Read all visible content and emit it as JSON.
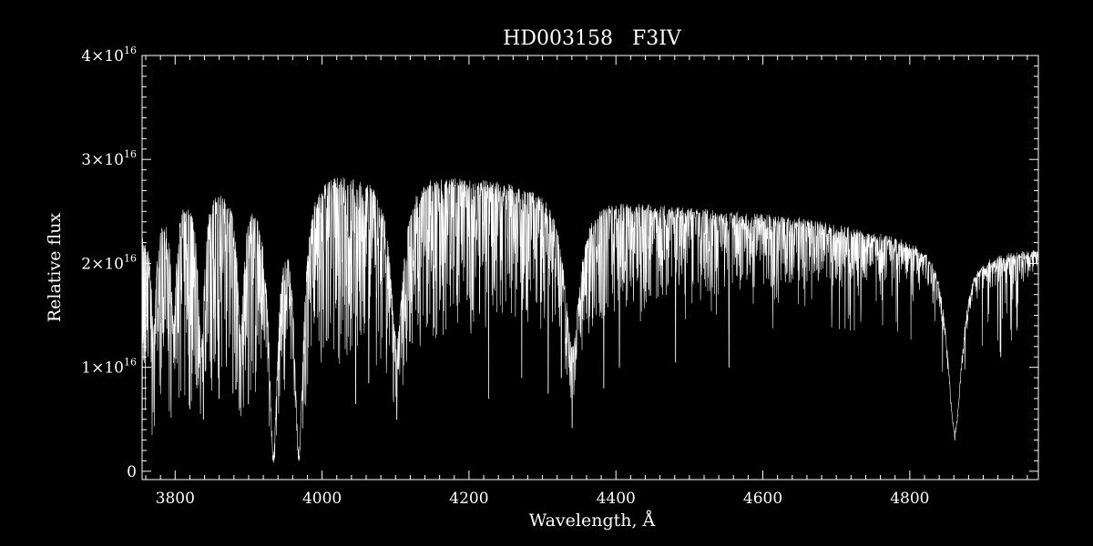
{
  "chart_data": {
    "type": "line",
    "title": "HD003158   F3IV",
    "xlabel": "Wavelength, Å",
    "ylabel": "Relative flux",
    "xlim": [
      3755,
      4975
    ],
    "ylim": [
      -0.08,
      4.0
    ],
    "y_scale_factor_exponent": "16",
    "x_ticks": [
      {
        "value": 3800,
        "label": "3800"
      },
      {
        "value": 4000,
        "label": "4000"
      },
      {
        "value": 4200,
        "label": "4200"
      },
      {
        "value": 4400,
        "label": "4400"
      },
      {
        "value": 4600,
        "label": "4600"
      },
      {
        "value": 4800,
        "label": "4800"
      }
    ],
    "y_ticks": [
      {
        "value": 0,
        "mantissa": "0",
        "exponent": ""
      },
      {
        "value": 1,
        "mantissa": "1×10",
        "exponent": "16"
      },
      {
        "value": 2,
        "mantissa": "2×10",
        "exponent": "16"
      },
      {
        "value": 3,
        "mantissa": "3×10",
        "exponent": "16"
      },
      {
        "value": 4,
        "mantissa": "4×10",
        "exponent": "16"
      }
    ],
    "series": [
      {
        "color": "#ffffff",
        "continuum": [
          [
            3755,
            2.3
          ],
          [
            3800,
            2.65
          ],
          [
            3850,
            2.78
          ],
          [
            3900,
            2.75
          ],
          [
            3950,
            2.72
          ],
          [
            4000,
            2.88
          ],
          [
            4050,
            2.88
          ],
          [
            4100,
            2.8
          ],
          [
            4150,
            2.85
          ],
          [
            4200,
            2.8
          ],
          [
            4250,
            2.78
          ],
          [
            4300,
            2.72
          ],
          [
            4350,
            2.62
          ],
          [
            4400,
            2.6
          ],
          [
            4450,
            2.55
          ],
          [
            4500,
            2.52
          ],
          [
            4550,
            2.48
          ],
          [
            4600,
            2.45
          ],
          [
            4650,
            2.42
          ],
          [
            4700,
            2.35
          ],
          [
            4750,
            2.3
          ],
          [
            4800,
            2.24
          ],
          [
            4850,
            2.2
          ],
          [
            4900,
            2.12
          ],
          [
            4975,
            2.12
          ]
        ],
        "broad_lines": [
          {
            "center": 3933.7,
            "depth": 0.94,
            "width": 7
          },
          {
            "center": 3968.5,
            "depth": 0.93,
            "width": 7
          },
          {
            "center": 4101.7,
            "depth": 0.55,
            "width": 10
          },
          {
            "center": 4340.5,
            "depth": 0.55,
            "width": 12
          },
          {
            "center": 4861.3,
            "depth": 0.82,
            "width": 12
          },
          {
            "center": 3889.1,
            "depth": 0.5,
            "width": 5
          },
          {
            "center": 3835.4,
            "depth": 0.55,
            "width": 5
          },
          {
            "center": 3797.9,
            "depth": 0.45,
            "width": 4
          },
          {
            "center": 3770.6,
            "depth": 0.4,
            "width": 4
          }
        ],
        "strong_lines": [
          {
            "x": 3933.7,
            "y": 0.15
          },
          {
            "x": 3968.5,
            "y": 0.15
          },
          {
            "x": 4101.7,
            "y": 0.5
          },
          {
            "x": 4340.5,
            "y": 0.42
          },
          {
            "x": 4861.3,
            "y": 0.3
          },
          {
            "x": 4045.8,
            "y": 0.65
          },
          {
            "x": 4226.7,
            "y": 0.7
          },
          {
            "x": 4307.9,
            "y": 0.75
          },
          {
            "x": 4383.5,
            "y": 0.8
          },
          {
            "x": 4554.0,
            "y": 1.0
          },
          {
            "x": 3820.4,
            "y": 0.6
          },
          {
            "x": 3838.3,
            "y": 0.5
          },
          {
            "x": 3859.9,
            "y": 0.7
          },
          {
            "x": 3878.6,
            "y": 0.75
          },
          {
            "x": 3899.7,
            "y": 0.65
          },
          {
            "x": 4063.6,
            "y": 0.85
          },
          {
            "x": 4271.8,
            "y": 0.9
          },
          {
            "x": 4325.8,
            "y": 0.9
          },
          {
            "x": 4404.8,
            "y": 1.0
          },
          {
            "x": 4481.2,
            "y": 1.05
          },
          {
            "x": 4923.9,
            "y": 1.1
          }
        ]
      }
    ]
  }
}
